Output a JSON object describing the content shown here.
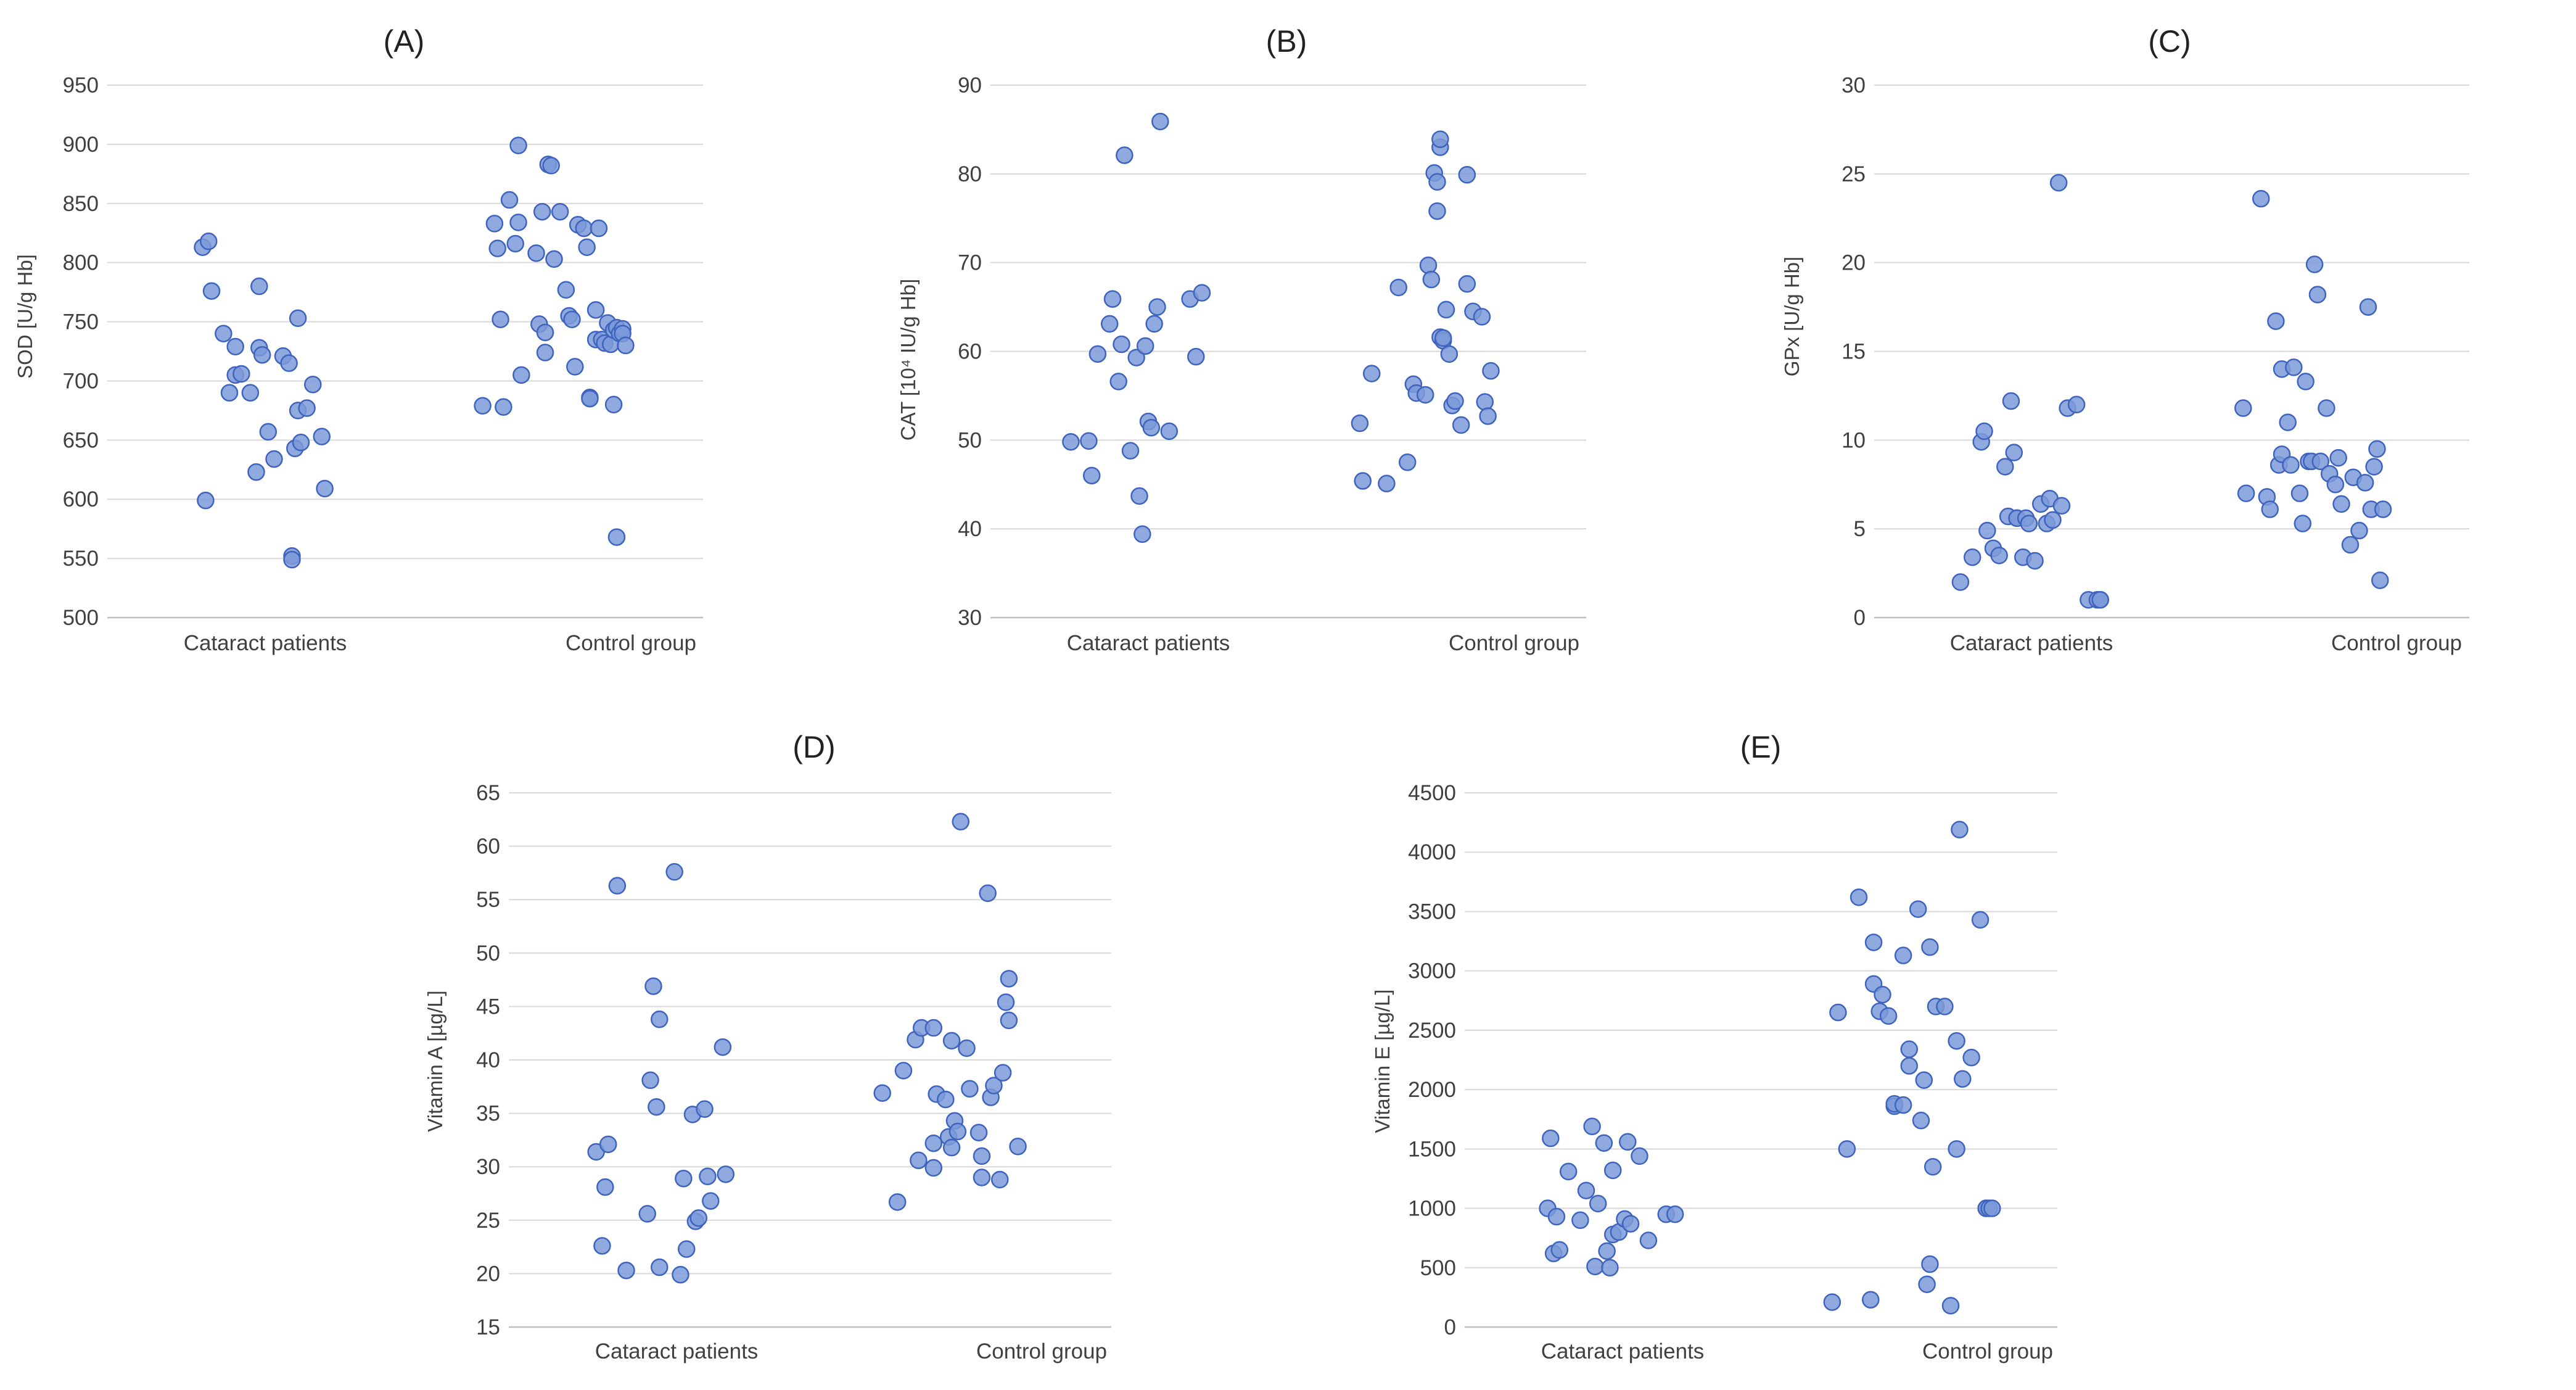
{
  "colors": {
    "marker_fill": "#7d9ad9",
    "marker_edge": "#3f64bd",
    "grid": "#d9d9d9",
    "text": "#404040"
  },
  "chart_data": [
    {
      "id": "A",
      "type": "scatter",
      "title": "(A)",
      "ylabel": "SOD [U/g Hb]",
      "ylim": [
        500,
        950
      ],
      "yticks": [
        500,
        550,
        600,
        650,
        700,
        750,
        800,
        850,
        900,
        950
      ],
      "categories": [
        "Cataract patients",
        "Control group"
      ],
      "series": [
        {
          "name": "Cataract patients",
          "x": [
            -0.18,
            -0.16,
            -0.15,
            -0.11,
            -0.09,
            -0.07,
            -0.07,
            -0.05,
            -0.02,
            0.0,
            0.01,
            0.01,
            0.02,
            0.04,
            0.06,
            0.09,
            0.11,
            0.12,
            0.12,
            0.13,
            0.14,
            0.14,
            0.15,
            0.17,
            0.19,
            0.22,
            0.23,
            -0.17
          ],
          "y": [
            813,
            818,
            776,
            740,
            690,
            729,
            705,
            706,
            690,
            623,
            780,
            728,
            722,
            657,
            634,
            721,
            715,
            552,
            549,
            643,
            753,
            675,
            648,
            677,
            697,
            653,
            609,
            599
          ]
        },
        {
          "name": "Control group",
          "x": [
            -0.24,
            -0.2,
            -0.19,
            -0.18,
            -0.17,
            -0.15,
            -0.13,
            -0.12,
            -0.12,
            -0.11,
            -0.06,
            -0.05,
            -0.04,
            -0.03,
            -0.03,
            -0.02,
            -0.01,
            0.0,
            0.02,
            0.04,
            0.05,
            0.06,
            0.07,
            0.08,
            0.1,
            0.11,
            0.12,
            0.12,
            0.14,
            0.14,
            0.15,
            0.16,
            0.17,
            0.18,
            0.19,
            0.2,
            0.2,
            0.21,
            0.22,
            0.23,
            0.21,
            0.23,
            0.24
          ],
          "y": [
            679,
            833,
            812,
            752,
            678,
            853,
            816,
            834,
            899,
            705,
            808,
            748,
            843,
            741,
            724,
            883,
            882,
            803,
            843,
            777,
            755,
            752,
            712,
            832,
            829,
            813,
            686,
            685,
            760,
            735,
            829,
            735,
            732,
            749,
            731,
            743,
            680,
            745,
            740,
            744,
            568,
            740,
            730
          ]
        }
      ]
    },
    {
      "id": "B",
      "type": "scatter",
      "title": "(B)",
      "ylabel": "CAT [10⁴ IU/g Hb]",
      "ylim": [
        30,
        90
      ],
      "yticks": [
        30,
        40,
        50,
        60,
        70,
        80,
        90
      ],
      "categories": [
        "Cataract patients",
        "Control group"
      ],
      "series": [
        {
          "name": "Cataract patients",
          "x": [
            -0.23,
            -0.17,
            -0.16,
            -0.14,
            -0.1,
            -0.09,
            -0.07,
            -0.06,
            -0.05,
            -0.03,
            -0.01,
            0.0,
            0.01,
            0.02,
            0.03,
            0.04,
            0.05,
            0.06,
            0.07,
            0.1,
            0.17,
            0.19,
            0.21
          ],
          "y": [
            49.8,
            49.9,
            46.0,
            59.7,
            63.1,
            65.9,
            56.6,
            60.8,
            82.1,
            48.8,
            59.3,
            43.7,
            39.4,
            60.6,
            52.1,
            51.4,
            63.1,
            65.0,
            85.9,
            51.0,
            65.9,
            59.4,
            66.6
          ]
        },
        {
          "name": "Control group",
          "x": [
            -0.26,
            -0.25,
            -0.22,
            -0.17,
            -0.13,
            -0.1,
            -0.08,
            -0.07,
            -0.04,
            -0.03,
            -0.02,
            -0.01,
            0.0,
            0.0,
            0.01,
            0.01,
            0.01,
            0.02,
            0.02,
            0.03,
            0.04,
            0.05,
            0.06,
            0.08,
            0.1,
            0.1,
            0.12,
            0.15,
            0.16,
            0.17,
            0.18
          ],
          "y": [
            51.9,
            45.4,
            57.5,
            45.1,
            67.2,
            47.5,
            56.3,
            55.3,
            55.1,
            69.7,
            68.1,
            80.1,
            79.1,
            75.8,
            83.0,
            83.9,
            61.6,
            61.2,
            61.5,
            64.7,
            59.7,
            53.9,
            54.4,
            51.7,
            67.6,
            79.9,
            64.5,
            63.9,
            54.3,
            52.7,
            57.8
          ]
        }
      ]
    },
    {
      "id": "C",
      "type": "scatter",
      "title": "(C)",
      "ylabel": "GPx [U/g Hb]",
      "ylim": [
        0,
        30
      ],
      "yticks": [
        0,
        5,
        10,
        15,
        20,
        25,
        30
      ],
      "categories": [
        "Cataract patients",
        "Control group"
      ],
      "series": [
        {
          "name": "Cataract patients",
          "x": [
            -0.21,
            -0.17,
            -0.14,
            -0.13,
            -0.12,
            -0.1,
            -0.08,
            -0.06,
            -0.05,
            -0.04,
            -0.03,
            -0.02,
            -0.02,
            0.0,
            0.01,
            0.02,
            0.04,
            0.06,
            0.08,
            0.09,
            0.1,
            0.12,
            0.13,
            0.15,
            0.18,
            0.22,
            0.25,
            0.26,
            0.26
          ],
          "y": [
            2.0,
            3.4,
            9.9,
            10.5,
            4.9,
            3.9,
            3.5,
            8.5,
            5.7,
            12.2,
            9.3,
            5.6,
            5.6,
            3.4,
            5.6,
            5.3,
            3.2,
            6.4,
            5.3,
            6.7,
            5.5,
            24.5,
            6.3,
            11.8,
            12.0,
            1.0,
            1.0,
            1.0,
            1.0
          ]
        },
        {
          "name": "Control group",
          "x": [
            -0.26,
            -0.25,
            -0.2,
            -0.18,
            -0.17,
            -0.15,
            -0.14,
            -0.13,
            -0.13,
            -0.11,
            -0.1,
            -0.09,
            -0.07,
            -0.06,
            -0.05,
            -0.04,
            -0.03,
            -0.02,
            -0.01,
            0.0,
            0.02,
            0.03,
            0.05,
            0.06,
            0.07,
            0.1,
            0.11,
            0.13,
            0.15,
            0.16,
            0.17,
            0.18,
            0.19,
            0.2,
            0.21
          ],
          "y": [
            11.8,
            7.0,
            23.6,
            6.8,
            6.1,
            16.7,
            8.6,
            9.2,
            14.0,
            11.0,
            8.6,
            14.1,
            7.0,
            5.3,
            13.3,
            8.8,
            8.8,
            19.9,
            18.2,
            8.8,
            11.8,
            8.1,
            7.5,
            9.0,
            6.4,
            4.1,
            7.9,
            4.9,
            7.6,
            17.5,
            6.1,
            8.5,
            9.5,
            2.1,
            6.1
          ]
        }
      ]
    },
    {
      "id": "D",
      "type": "scatter",
      "title": "(D)",
      "ylabel": "Vitamin A [µg/L]",
      "ylim": [
        15,
        65
      ],
      "yticks": [
        15,
        20,
        25,
        30,
        35,
        40,
        45,
        50,
        55,
        60,
        65
      ],
      "categories": [
        "Cataract patients",
        "Control group"
      ],
      "series": [
        {
          "name": "Cataract patients",
          "x": [
            -0.21,
            -0.19,
            -0.18,
            -0.17,
            -0.14,
            -0.11,
            -0.04,
            -0.03,
            -0.02,
            -0.01,
            0.0,
            0.0,
            0.05,
            0.07,
            0.08,
            0.09,
            0.11,
            0.12,
            0.13,
            0.15,
            0.16,
            0.17,
            0.21,
            0.22
          ],
          "y": [
            31.4,
            22.6,
            28.1,
            32.1,
            56.3,
            20.3,
            25.6,
            38.1,
            46.9,
            35.6,
            43.8,
            20.6,
            57.6,
            19.9,
            28.9,
            22.3,
            34.9,
            24.9,
            25.2,
            35.4,
            29.1,
            26.8,
            41.2,
            29.3
          ]
        },
        {
          "name": "Control group",
          "x": [
            -0.26,
            -0.21,
            -0.19,
            -0.15,
            -0.14,
            -0.13,
            -0.09,
            -0.09,
            -0.09,
            -0.08,
            -0.05,
            -0.04,
            -0.03,
            -0.03,
            -0.02,
            -0.01,
            0.0,
            0.02,
            0.03,
            0.06,
            0.07,
            0.07,
            0.09,
            0.1,
            0.11,
            0.13,
            0.14,
            0.15,
            0.16,
            0.16,
            0.19
          ],
          "y": [
            36.9,
            26.7,
            39.0,
            41.9,
            30.6,
            43.0,
            32.2,
            29.9,
            43.0,
            36.8,
            36.3,
            32.8,
            41.8,
            31.8,
            34.3,
            33.3,
            62.3,
            41.1,
            37.3,
            33.2,
            31.0,
            29.0,
            55.6,
            36.5,
            37.6,
            28.8,
            38.8,
            45.4,
            43.7,
            47.6,
            31.9
          ]
        }
      ]
    },
    {
      "id": "E",
      "type": "scatter",
      "title": "(E)",
      "ylabel": "Vitamin E [µg/L]",
      "ylim": [
        0,
        4500
      ],
      "yticks": [
        0,
        500,
        1000,
        1500,
        2000,
        2500,
        3000,
        3500,
        4000,
        4500
      ],
      "categories": [
        "Cataract patients",
        "Control group"
      ],
      "series": [
        {
          "name": "Cataract patients",
          "x": [
            -0.22,
            -0.21,
            -0.2,
            -0.19,
            -0.18,
            -0.15,
            -0.11,
            -0.09,
            -0.07,
            -0.06,
            -0.05,
            -0.03,
            -0.02,
            -0.01,
            0.0,
            0.0,
            0.02,
            0.04,
            0.05,
            0.06,
            0.09,
            0.12,
            0.18,
            0.21
          ],
          "y": [
            1000,
            1590,
            620,
            930,
            650,
            1310,
            900,
            1150,
            1690,
            510,
            1040,
            1550,
            640,
            500,
            780,
            1320,
            800,
            910,
            1560,
            870,
            1440,
            730,
            950,
            950
          ]
        },
        {
          "name": "Control group",
          "x": [
            -0.26,
            -0.24,
            -0.21,
            -0.17,
            -0.13,
            -0.12,
            -0.12,
            -0.1,
            -0.09,
            -0.07,
            -0.05,
            -0.05,
            -0.02,
            -0.02,
            0.0,
            0.0,
            0.03,
            0.04,
            0.05,
            0.06,
            0.07,
            0.07,
            0.08,
            0.09,
            0.12,
            0.14,
            0.16,
            0.16,
            0.17,
            0.18,
            0.21,
            0.24,
            0.26,
            0.26,
            0.27,
            0.28
          ],
          "y": [
            210,
            2650,
            1500,
            3620,
            230,
            2890,
            3240,
            2660,
            2800,
            2620,
            1860,
            1880,
            1870,
            3130,
            2340,
            2200,
            3520,
            1740,
            2080,
            360,
            530,
            3200,
            1350,
            2700,
            2700,
            180,
            2410,
            1500,
            4190,
            2090,
            2270,
            3430,
            1000,
            1000,
            1000,
            1000
          ]
        }
      ]
    }
  ]
}
